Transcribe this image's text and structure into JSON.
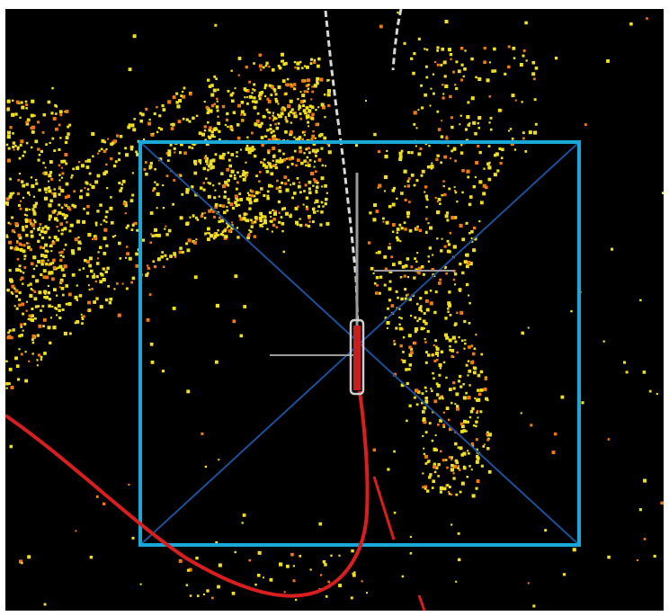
{
  "colors": {
    "background": "#000000",
    "frame": "#ffffff",
    "point_yellow": "#f0e020",
    "point_orange": "#f07a10",
    "box": "#19a8d8",
    "box_diagonals": "#1e4f9a",
    "trajectory": "#d81e1e",
    "vehicle_fill": "#c81e1e",
    "vehicle_outline": "#d0d0d0",
    "lane_marking": "#d8d8d8",
    "crosshair": "#9a9a9a"
  },
  "scene": {
    "type": "lidar-point-cloud-top-view",
    "clusters": [
      "left-arc-cluster",
      "right-vertical-cluster",
      "scattered-points"
    ],
    "objects": [
      "detection-box",
      "ego-vehicle",
      "planned-trajectory",
      "lane-marking-dashed",
      "crosshair"
    ]
  }
}
